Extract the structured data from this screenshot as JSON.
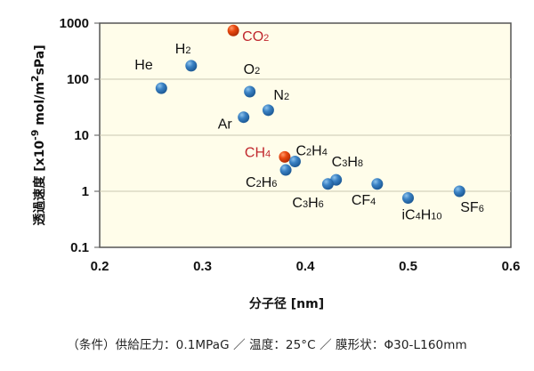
{
  "chart_data": {
    "type": "scatter",
    "title": "",
    "xlabel": "分子径 [nm]",
    "ylabel": "透過速度 [x10⁻⁹ mol/m²sPa]",
    "ylabel_parts": {
      "main": "透過速度 [x10",
      "exp": "-9",
      "mid": " mol/m",
      "sq": "2",
      "end": "sPa]"
    },
    "x_ticks": [
      "0.2",
      "0.3",
      "0.4",
      "0.5",
      "0.6"
    ],
    "y_ticks": [
      "0.1",
      "1",
      "10",
      "100",
      "1000"
    ],
    "xlim": [
      0.2,
      0.6
    ],
    "ylim": [
      0.1,
      1000
    ],
    "y_scale": "log",
    "grid": "horizontal major (decades)",
    "legend": "none (points labeled directly)",
    "colors": {
      "normal": "#2e75b6",
      "highlight": "#e2400f",
      "plot_bg": "#fffdea",
      "highlight_label": "#c0272d"
    },
    "points": [
      {
        "name": "He",
        "label": [
          "He"
        ],
        "x": 0.26,
        "y": 69,
        "highlight": false
      },
      {
        "name": "H2",
        "label": [
          "H",
          "2"
        ],
        "x": 0.289,
        "y": 174,
        "highlight": false
      },
      {
        "name": "CO2",
        "label": [
          "CO",
          "2"
        ],
        "x": 0.33,
        "y": 740,
        "highlight": true
      },
      {
        "name": "O2",
        "label": [
          "O",
          "2"
        ],
        "x": 0.346,
        "y": 60,
        "highlight": false
      },
      {
        "name": "N2",
        "label": [
          "N",
          "2"
        ],
        "x": 0.364,
        "y": 28,
        "highlight": false
      },
      {
        "name": "Ar",
        "label": [
          "Ar"
        ],
        "x": 0.34,
        "y": 21,
        "highlight": false
      },
      {
        "name": "CH4",
        "label": [
          "CH",
          "4"
        ],
        "x": 0.38,
        "y": 4.1,
        "highlight": true
      },
      {
        "name": "C2H4",
        "label": [
          "C",
          "2",
          "H",
          "4"
        ],
        "x": 0.39,
        "y": 3.4,
        "highlight": false
      },
      {
        "name": "C2H6",
        "label": [
          "C",
          "2",
          "H",
          "6"
        ],
        "x": 0.381,
        "y": 2.4,
        "highlight": false
      },
      {
        "name": "C3H8",
        "label": [
          "C",
          "3",
          "H",
          "8"
        ],
        "x": 0.43,
        "y": 1.6,
        "highlight": false
      },
      {
        "name": "C3H6",
        "label": [
          "C",
          "3",
          "H",
          "6"
        ],
        "x": 0.422,
        "y": 1.35,
        "highlight": false
      },
      {
        "name": "CF4",
        "label": [
          "CF",
          "4"
        ],
        "x": 0.47,
        "y": 1.35,
        "highlight": false
      },
      {
        "name": "iC4H10",
        "label": [
          "iC",
          "4",
          "H",
          "10"
        ],
        "x": 0.5,
        "y": 0.76,
        "highlight": false
      },
      {
        "name": "SF6",
        "label": [
          "SF",
          "6"
        ],
        "x": 0.55,
        "y": 1.0,
        "highlight": false
      }
    ]
  },
  "caption": "（条件）供給圧力：0.1MPaG ／ 温度：25°C ／ 膜形状：Φ30-L160mm"
}
